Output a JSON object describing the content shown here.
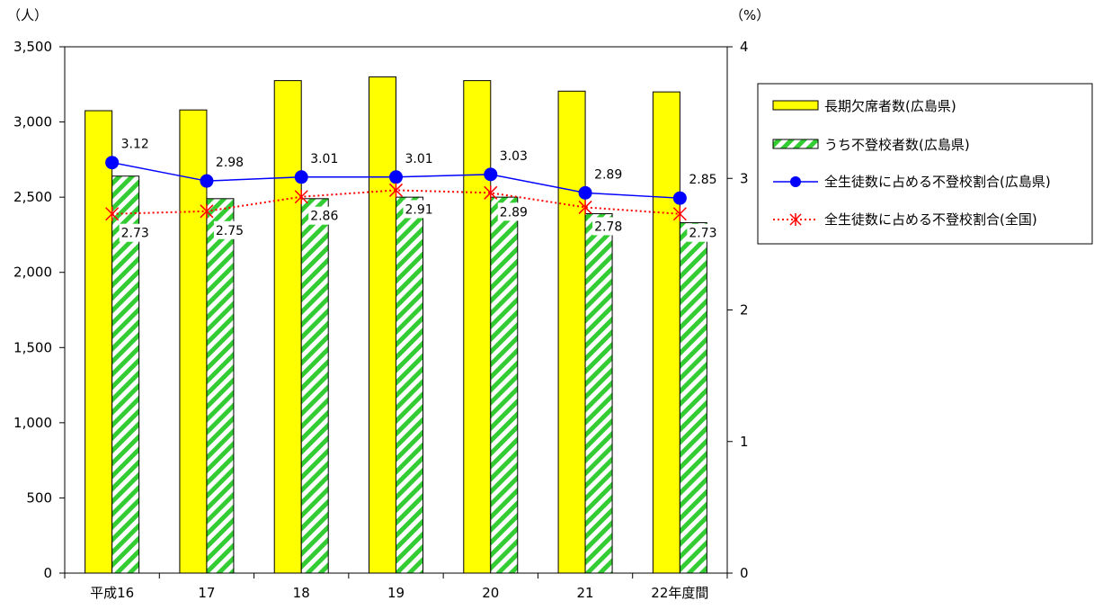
{
  "chart_data": {
    "type": "bar",
    "categories": [
      "平成16",
      "17",
      "18",
      "19",
      "20",
      "21",
      "22年度間"
    ],
    "y_left_unit": "（人）",
    "y_right_unit": "（%）",
    "ylim_left": [
      0,
      3500
    ],
    "ylim_right": [
      0,
      4
    ],
    "left_ticks": [
      "0",
      "500",
      "1,000",
      "1,500",
      "2,000",
      "2,500",
      "3,000",
      "3,500"
    ],
    "right_ticks": [
      "0",
      "1",
      "2",
      "3",
      "4"
    ],
    "grid": false,
    "legend_position": "right",
    "series": [
      {
        "name": "長期欠席者数(広島県)",
        "kind": "bar",
        "axis": "left",
        "color": "#ffff00",
        "values": [
          3075,
          3080,
          3275,
          3300,
          3275,
          3205,
          3200
        ]
      },
      {
        "name": "うち不登校者数(広島県)",
        "kind": "bar-hatched",
        "axis": "left",
        "color": "#33cc33",
        "values": [
          2640,
          2490,
          2490,
          2500,
          2500,
          2390,
          2330
        ]
      },
      {
        "name": "全生徒数に占める不登校割合(広島県)",
        "kind": "line",
        "axis": "right",
        "color": "#0000ff",
        "values": [
          3.12,
          2.98,
          3.01,
          3.01,
          3.03,
          2.89,
          2.85
        ],
        "labels": [
          "3.12",
          "2.98",
          "3.01",
          "3.01",
          "3.03",
          "2.89",
          "2.85"
        ]
      },
      {
        "name": "全生徒数に占める不登校割合(全国)",
        "kind": "line-dotted",
        "axis": "right",
        "color": "#ff0000",
        "values": [
          2.73,
          2.75,
          2.86,
          2.91,
          2.89,
          2.78,
          2.73
        ],
        "labels": [
          "2.73",
          "2.75",
          "2.86",
          "2.91",
          "2.89",
          "2.78",
          "2.73"
        ]
      }
    ]
  }
}
